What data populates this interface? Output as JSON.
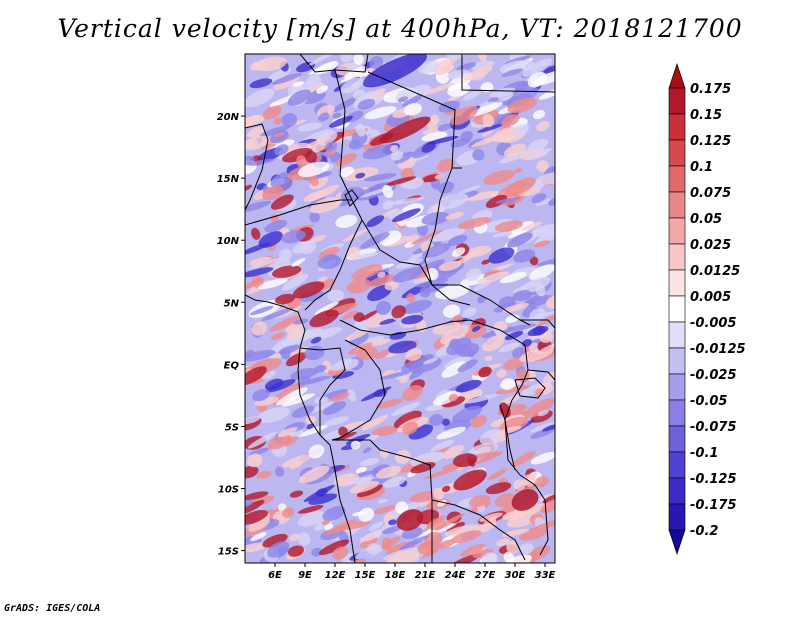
{
  "title": "Vertical velocity [m/s] at 400hPa, VT: 2018121700",
  "footer": "GrADS: IGES/COLA",
  "map": {
    "lon_range": [
      3,
      34
    ],
    "lat_range": [
      -16,
      25
    ],
    "lon_ticks": [
      {
        "value": 6,
        "label": "6E"
      },
      {
        "value": 9,
        "label": "9E"
      },
      {
        "value": 12,
        "label": "12E"
      },
      {
        "value": 15,
        "label": "15E"
      },
      {
        "value": 18,
        "label": "18E"
      },
      {
        "value": 21,
        "label": "21E"
      },
      {
        "value": 24,
        "label": "24E"
      },
      {
        "value": 27,
        "label": "27E"
      },
      {
        "value": 30,
        "label": "30E"
      },
      {
        "value": 33,
        "label": "33E"
      }
    ],
    "lat_ticks": [
      {
        "value": 20,
        "label": "20N"
      },
      {
        "value": 15,
        "label": "15N"
      },
      {
        "value": 10,
        "label": "10N"
      },
      {
        "value": 5,
        "label": "5N"
      },
      {
        "value": 0,
        "label": "EQ"
      },
      {
        "value": -5,
        "label": "5S"
      },
      {
        "value": -10,
        "label": "10S"
      },
      {
        "value": -15,
        "label": "15S"
      }
    ],
    "field_colors": {
      "up_strong": "#b2182b",
      "up": "#ef8a8a",
      "up_weak": "#fbd0d0",
      "neutral": "#ffffff",
      "down_weak": "#d8d4f6",
      "down": "#8c86ea",
      "down_strong": "#3b2fd0"
    },
    "country_border_color": "#000000"
  },
  "colorbar": {
    "levels": [
      "0.175",
      "0.15",
      "0.125",
      "0.1",
      "0.075",
      "0.05",
      "0.025",
      "0.0125",
      "0.005",
      "-0.005",
      "-0.0125",
      "-0.025",
      "-0.05",
      "-0.075",
      "-0.1",
      "-0.125",
      "-0.175",
      "-0.2"
    ],
    "colors": [
      "#a50f15",
      "#b2182b",
      "#c8303a",
      "#d6494f",
      "#e06a6a",
      "#e88888",
      "#f2a8a8",
      "#f8c8c8",
      "#fde3e3",
      "#ffffff",
      "#e0def8",
      "#c4bff2",
      "#a49eec",
      "#8880e4",
      "#6c62dc",
      "#4e42d2",
      "#3a2cc4",
      "#2618b0",
      "#140896"
    ]
  }
}
